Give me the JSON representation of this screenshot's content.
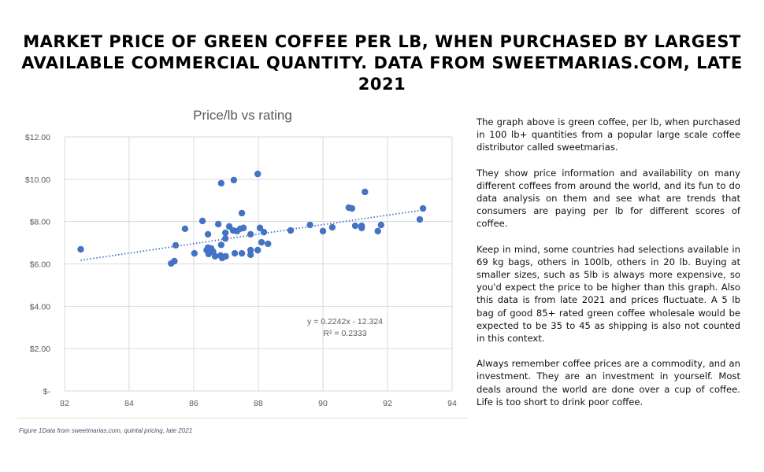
{
  "page_title": "Market price of green coffee per lb, when purchased by largest available commercial quantity. Data from sweetmarias.com, late 2021",
  "caption": "Figure 1Data from sweetmarias.com, quintal pricing, late 2021",
  "paragraphs": [
    "The graph above is green coffee, per lb, when purchased in 100 lb+ quantities from a popular large scale coffee distributor called sweetmarias.",
    "They show price information and availability on many different coffees from around the world, and its fun to do data analysis on them and see what are trends that consumers are paying per lb for different scores of coffee.",
    "Keep in mind, some countries had selections available in 69 kg bags, others in 100lb, others in 20 lb. Buying at smaller sizes, such as 5lb is always more expensive, so you'd expect the price to be higher than this graph. Also this data is from late 2021 and prices fluctuate. A 5 lb bag of good 85+ rated green coffee wholesale would be expected to be 35 to 45 as shipping is also not counted in this context.",
    "Always remember coffee prices are a commodity, and an investment. They are an investment in yourself. Most deals around the world are done over a cup of coffee. Life is too short to drink poor coffee."
  ],
  "chart_data": {
    "type": "scatter",
    "title": "Price/lb vs rating",
    "xlabel": "",
    "ylabel": "",
    "xlim": [
      82,
      94
    ],
    "ylim": [
      0,
      12
    ],
    "x_ticks": [
      "82",
      "84",
      "86",
      "88",
      "90",
      "92",
      "94"
    ],
    "y_ticks": [
      "$-",
      "$2.00",
      "$4.00",
      "$6.00",
      "$8.00",
      "$10.00",
      "$12.00"
    ],
    "grid": true,
    "marker_color": "#4472c4",
    "trendline": {
      "type": "linear",
      "slope": 0.2242,
      "intercept": -12.324,
      "equation": "y = 0.2242x - 12.324",
      "r2_label": "R² = 0.2333",
      "style": "dotted"
    },
    "points": [
      [
        82.5,
        6.69
      ],
      [
        85.44,
        6.88
      ],
      [
        85.3,
        6.02
      ],
      [
        85.4,
        6.13
      ],
      [
        85.73,
        7.66
      ],
      [
        86.02,
        6.5
      ],
      [
        86.27,
        8.03
      ],
      [
        86.44,
        7.4
      ],
      [
        86.44,
        6.77
      ],
      [
        86.46,
        6.47
      ],
      [
        86.6,
        6.58
      ],
      [
        86.66,
        6.36
      ],
      [
        86.54,
        6.73
      ],
      [
        86.4,
        6.65
      ],
      [
        86.83,
        6.4
      ],
      [
        86.85,
        6.9
      ],
      [
        86.88,
        6.28
      ],
      [
        86.99,
        6.36
      ],
      [
        86.76,
        7.88
      ],
      [
        86.85,
        9.81
      ],
      [
        87.24,
        9.96
      ],
      [
        87.49,
        8.4
      ],
      [
        87.98,
        10.25
      ],
      [
        86.98,
        7.47
      ],
      [
        86.98,
        7.2
      ],
      [
        87.1,
        7.77
      ],
      [
        87.22,
        7.58
      ],
      [
        87.34,
        7.55
      ],
      [
        87.44,
        7.66
      ],
      [
        87.54,
        7.7
      ],
      [
        87.27,
        6.5
      ],
      [
        87.49,
        6.5
      ],
      [
        87.76,
        7.4
      ],
      [
        87.76,
        6.65
      ],
      [
        87.76,
        6.43
      ],
      [
        87.98,
        6.65
      ],
      [
        88.05,
        7.7
      ],
      [
        88.17,
        7.5
      ],
      [
        88.1,
        7.02
      ],
      [
        88.3,
        6.95
      ],
      [
        89.0,
        7.58
      ],
      [
        89.6,
        7.84
      ],
      [
        90.0,
        7.55
      ],
      [
        90.29,
        7.73
      ],
      [
        90.8,
        8.66
      ],
      [
        90.9,
        8.62
      ],
      [
        91.0,
        7.8
      ],
      [
        91.2,
        7.8
      ],
      [
        91.2,
        7.7
      ],
      [
        91.3,
        9.4
      ],
      [
        91.7,
        7.55
      ],
      [
        91.8,
        7.84
      ],
      [
        93.0,
        8.1
      ],
      [
        93.1,
        8.62
      ]
    ]
  }
}
